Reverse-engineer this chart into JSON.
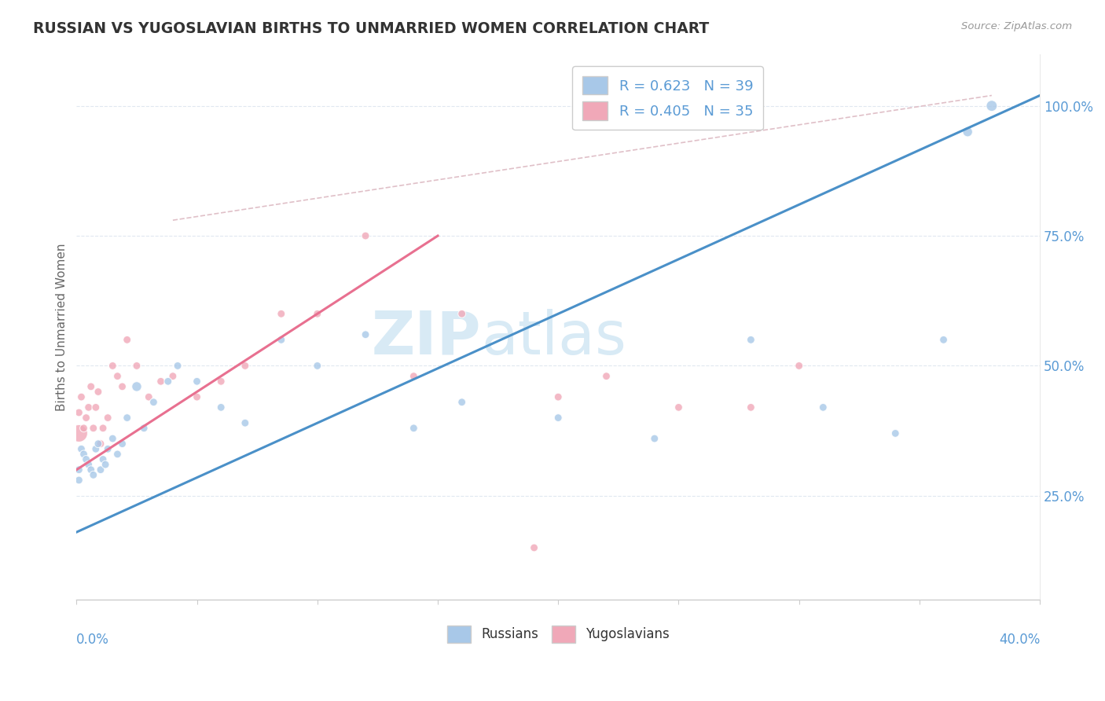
{
  "title": "RUSSIAN VS YUGOSLAVIAN BIRTHS TO UNMARRIED WOMEN CORRELATION CHART",
  "source": "Source: ZipAtlas.com",
  "ylabel": "Births to Unmarried Women",
  "russian_color": "#A8C8E8",
  "yugo_color": "#F0A8B8",
  "russian_line_color": "#4A90C8",
  "yugo_line_color": "#E87090",
  "ref_line_color": "#E0C0C8",
  "background_color": "#FFFFFF",
  "watermark_color": "#D8EAF5",
  "grid_color": "#E0E8F0",
  "right_tick_color": "#5B9BD5",
  "ylabel_color": "#666666",
  "title_color": "#333333",
  "source_color": "#999999",
  "x_label_color": "#5B9BD5",
  "rus_R": "0.623",
  "rus_N": "39",
  "yug_R": "0.405",
  "yug_N": "35",
  "russians_x": [
    0.001,
    0.001,
    0.002,
    0.003,
    0.004,
    0.005,
    0.006,
    0.007,
    0.008,
    0.009,
    0.01,
    0.011,
    0.012,
    0.013,
    0.015,
    0.017,
    0.019,
    0.021,
    0.025,
    0.028,
    0.032,
    0.038,
    0.042,
    0.05,
    0.06,
    0.07,
    0.085,
    0.1,
    0.12,
    0.14,
    0.16,
    0.2,
    0.24,
    0.28,
    0.31,
    0.34,
    0.36,
    0.37,
    0.38
  ],
  "russians_y": [
    0.3,
    0.28,
    0.34,
    0.33,
    0.32,
    0.31,
    0.3,
    0.29,
    0.34,
    0.35,
    0.3,
    0.32,
    0.31,
    0.34,
    0.36,
    0.33,
    0.35,
    0.4,
    0.46,
    0.38,
    0.43,
    0.47,
    0.5,
    0.47,
    0.42,
    0.39,
    0.55,
    0.5,
    0.56,
    0.38,
    0.43,
    0.4,
    0.36,
    0.55,
    0.42,
    0.37,
    0.55,
    0.95,
    1.0
  ],
  "russians_size": [
    50,
    50,
    50,
    50,
    50,
    50,
    50,
    50,
    50,
    50,
    50,
    50,
    50,
    50,
    50,
    50,
    50,
    50,
    80,
    50,
    50,
    50,
    50,
    50,
    50,
    50,
    50,
    50,
    50,
    50,
    50,
    50,
    50,
    50,
    50,
    50,
    50,
    80,
    100
  ],
  "yugos_x": [
    0.001,
    0.001,
    0.002,
    0.003,
    0.004,
    0.005,
    0.006,
    0.007,
    0.008,
    0.009,
    0.01,
    0.011,
    0.013,
    0.015,
    0.017,
    0.019,
    0.021,
    0.025,
    0.03,
    0.035,
    0.04,
    0.05,
    0.06,
    0.07,
    0.085,
    0.1,
    0.12,
    0.14,
    0.16,
    0.19,
    0.2,
    0.22,
    0.25,
    0.28,
    0.3
  ],
  "yugos_y": [
    0.37,
    0.41,
    0.44,
    0.38,
    0.4,
    0.42,
    0.46,
    0.38,
    0.42,
    0.45,
    0.35,
    0.38,
    0.4,
    0.5,
    0.48,
    0.46,
    0.55,
    0.5,
    0.44,
    0.47,
    0.48,
    0.44,
    0.47,
    0.5,
    0.6,
    0.6,
    0.75,
    0.48,
    0.6,
    0.15,
    0.44,
    0.48,
    0.42,
    0.42,
    0.5
  ],
  "yugos_size": [
    250,
    50,
    50,
    50,
    50,
    50,
    50,
    50,
    50,
    50,
    50,
    50,
    50,
    50,
    50,
    50,
    50,
    50,
    50,
    50,
    50,
    50,
    50,
    50,
    50,
    50,
    50,
    50,
    50,
    50,
    50,
    50,
    50,
    50,
    50
  ],
  "blue_line_x": [
    0.0,
    0.4
  ],
  "blue_line_y": [
    0.18,
    1.02
  ],
  "pink_line_x": [
    0.0,
    0.15
  ],
  "pink_line_y": [
    0.3,
    0.75
  ],
  "ref_line_x": [
    0.04,
    0.38
  ],
  "ref_line_y": [
    0.78,
    1.02
  ],
  "xlim": [
    0.0,
    0.4
  ],
  "ylim": [
    0.05,
    1.1
  ],
  "right_yticks": [
    0.25,
    0.5,
    0.75,
    1.0
  ],
  "right_yticklabels": [
    "25.0%",
    "50.0%",
    "75.0%",
    "100.0%"
  ]
}
